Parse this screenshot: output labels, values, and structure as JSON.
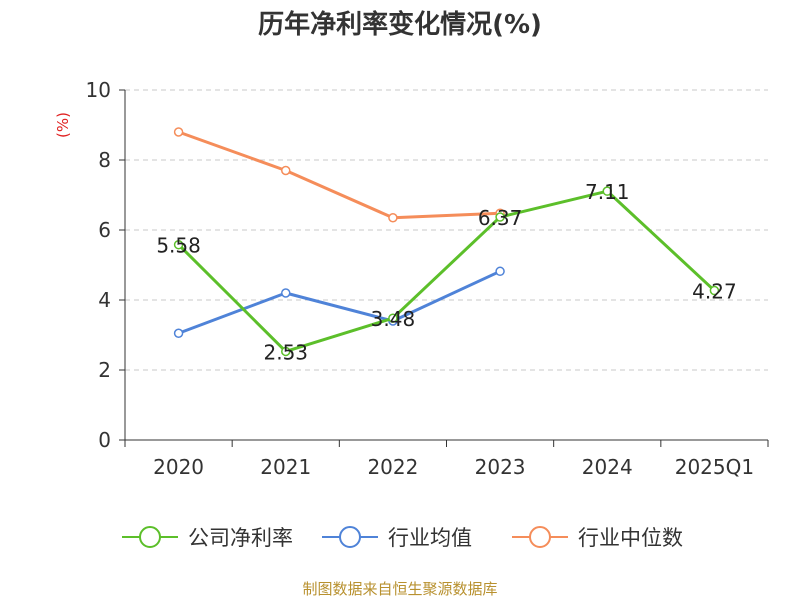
{
  "title": "历年净利率变化情况(%)",
  "source": "制图数据来自恒生聚源数据库",
  "chart_data": {
    "type": "line",
    "title": "历年净利率变化情况(%)",
    "ylabel": "(%)",
    "xlabel": "",
    "categories": [
      "2020",
      "2021",
      "2022",
      "2023",
      "2024",
      "2025Q1"
    ],
    "ylim": [
      0,
      10
    ],
    "yticks": [
      0,
      2,
      4,
      6,
      8,
      10
    ],
    "grid": true,
    "legend_position": "bottom",
    "series": [
      {
        "name": "公司净利率",
        "color": "#5cbf2a",
        "values": [
          5.58,
          2.53,
          3.48,
          6.37,
          7.11,
          4.27
        ],
        "show_labels": true
      },
      {
        "name": "行业均值",
        "color": "#4f83d8",
        "values": [
          3.05,
          4.2,
          3.4,
          4.82,
          null,
          null
        ],
        "show_labels": false
      },
      {
        "name": "行业中位数",
        "color": "#f58d5a",
        "values": [
          8.8,
          7.7,
          6.35,
          6.48,
          null,
          null
        ],
        "show_labels": false
      }
    ]
  }
}
